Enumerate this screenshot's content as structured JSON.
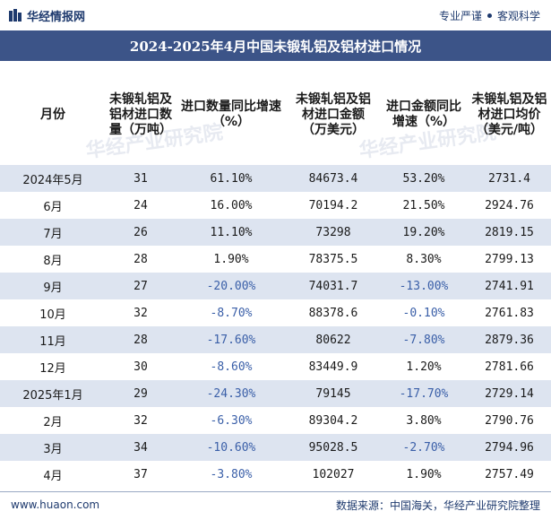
{
  "header": {
    "brand": "华经情报网",
    "tagline_left": "专业严谨",
    "tagline_right": "客观科学"
  },
  "title": "2024-2025年4月中国未锻轧铝及铝材进口情况",
  "columns": [
    "月份",
    "未锻轧铝及铝材进口数量（万吨）",
    "进口数量同比增速（%）",
    "未锻轧铝及铝材进口金额（万美元）",
    "进口金额同比增速（%）",
    "未锻轧铝及铝材进口均价（美元/吨）"
  ],
  "rows": [
    {
      "month": "2024年5月",
      "qty": "31",
      "qty_yoy": "61.10%",
      "amt": "84673.4",
      "amt_yoy": "53.20%",
      "price": "2731.4"
    },
    {
      "month": "6月",
      "qty": "24",
      "qty_yoy": "16.00%",
      "amt": "70194.2",
      "amt_yoy": "21.50%",
      "price": "2924.76"
    },
    {
      "month": "7月",
      "qty": "26",
      "qty_yoy": "11.10%",
      "amt": "73298",
      "amt_yoy": "19.20%",
      "price": "2819.15"
    },
    {
      "month": "8月",
      "qty": "28",
      "qty_yoy": "1.90%",
      "amt": "78375.5",
      "amt_yoy": "8.30%",
      "price": "2799.13"
    },
    {
      "month": "9月",
      "qty": "27",
      "qty_yoy": "-20.00%",
      "amt": "74031.7",
      "amt_yoy": "-13.00%",
      "price": "2741.91"
    },
    {
      "month": "10月",
      "qty": "32",
      "qty_yoy": "-8.70%",
      "amt": "88378.6",
      "amt_yoy": "-0.10%",
      "price": "2761.83"
    },
    {
      "month": "11月",
      "qty": "28",
      "qty_yoy": "-17.60%",
      "amt": "80622",
      "amt_yoy": "-7.80%",
      "price": "2879.36"
    },
    {
      "month": "12月",
      "qty": "30",
      "qty_yoy": "-8.60%",
      "amt": "83449.9",
      "amt_yoy": "1.20%",
      "price": "2781.66"
    },
    {
      "month": "2025年1月",
      "qty": "29",
      "qty_yoy": "-24.30%",
      "amt": "79145",
      "amt_yoy": "-17.70%",
      "price": "2729.14"
    },
    {
      "month": "2月",
      "qty": "32",
      "qty_yoy": "-6.30%",
      "amt": "89304.2",
      "amt_yoy": "3.80%",
      "price": "2790.76"
    },
    {
      "month": "3月",
      "qty": "34",
      "qty_yoy": "-10.60%",
      "amt": "95028.5",
      "amt_yoy": "-2.70%",
      "price": "2794.96"
    },
    {
      "month": "4月",
      "qty": "37",
      "qty_yoy": "-3.80%",
      "amt": "102027",
      "amt_yoy": "1.90%",
      "price": "2757.49"
    }
  ],
  "footer": {
    "url": "www.huaon.com",
    "source": "数据来源：中国海关，华经产业研究院整理"
  },
  "watermark": "华经产业研究院",
  "colors": {
    "title_bg": "#3c5488",
    "stripe": "#dde4f0",
    "negative": "#3a5fa8"
  }
}
